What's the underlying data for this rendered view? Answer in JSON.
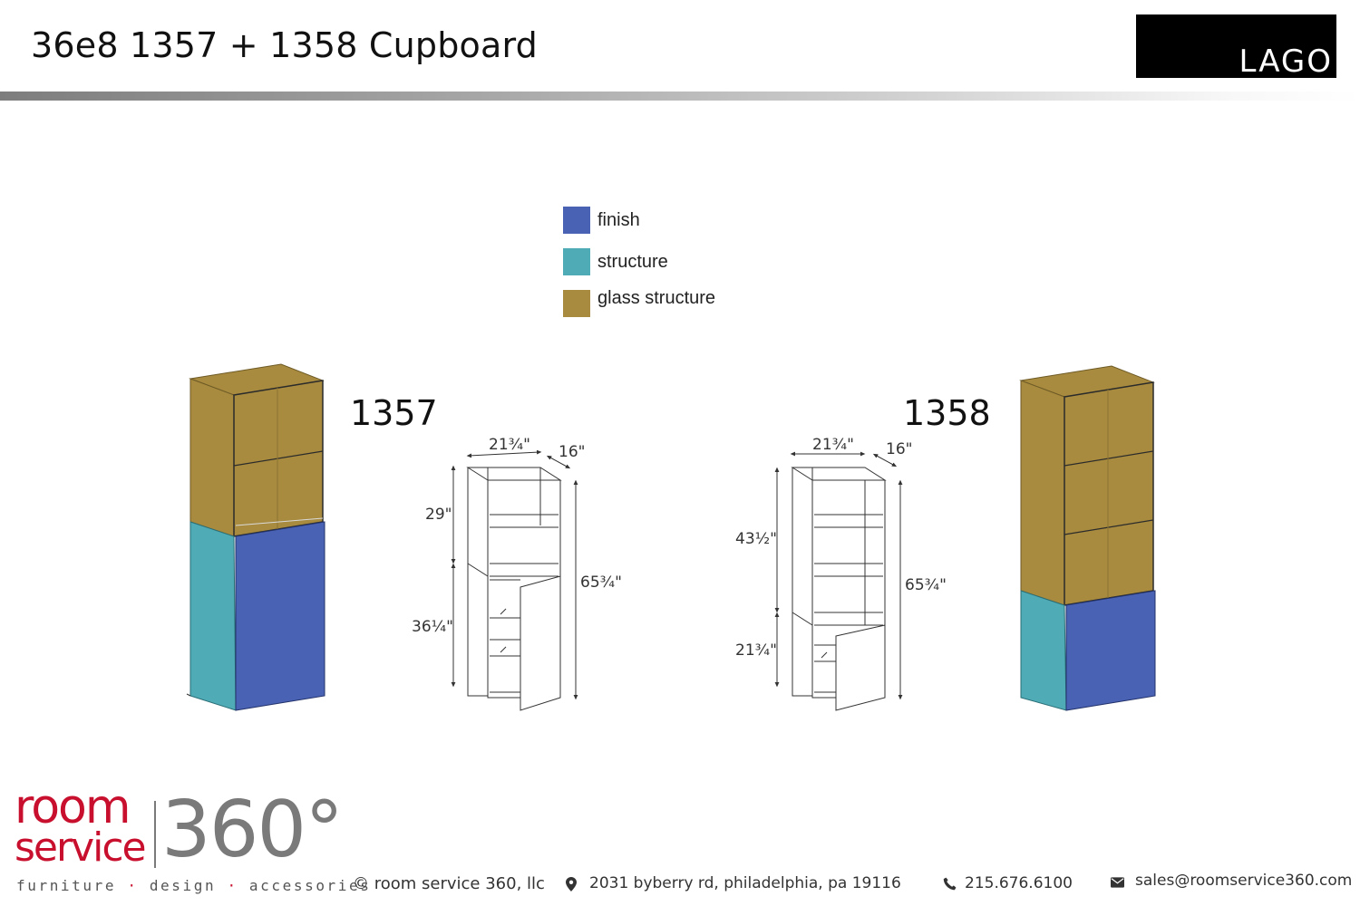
{
  "header": {
    "title": "36e8 1357 + 1358 Cupboard",
    "logo_text": "LAGO"
  },
  "legend": {
    "items": [
      {
        "label": "finish",
        "color": "#4a62b4"
      },
      {
        "label": "structure",
        "color": "#4fabb6"
      },
      {
        "label": "glass structure",
        "color": "#a88b3e"
      }
    ]
  },
  "models": [
    {
      "number": "1357",
      "dimensions": {
        "width": "21¾\"",
        "depth": "16\"",
        "upper_height": "29\"",
        "lower_height": "36¼\"",
        "total_height": "65¾\""
      }
    },
    {
      "number": "1358",
      "dimensions": {
        "width": "21¾\"",
        "depth": "16\"",
        "upper_height": "43½\"",
        "lower_height": "21¾\"",
        "total_height": "65¾\""
      }
    }
  ],
  "footer": {
    "brand_room": "room",
    "brand_service": "service",
    "brand_360": "360°",
    "tagline": [
      "furniture",
      "design",
      "accessories"
    ],
    "copyright": "© room service 360, llc",
    "address": "2031 byberry rd, philadelphia, pa 19116",
    "phone": "215.676.6100",
    "email": "sales@roomservice360.com",
    "location_icon": "map-pin-icon",
    "phone_icon": "phone-icon",
    "email_icon": "envelope-icon"
  }
}
